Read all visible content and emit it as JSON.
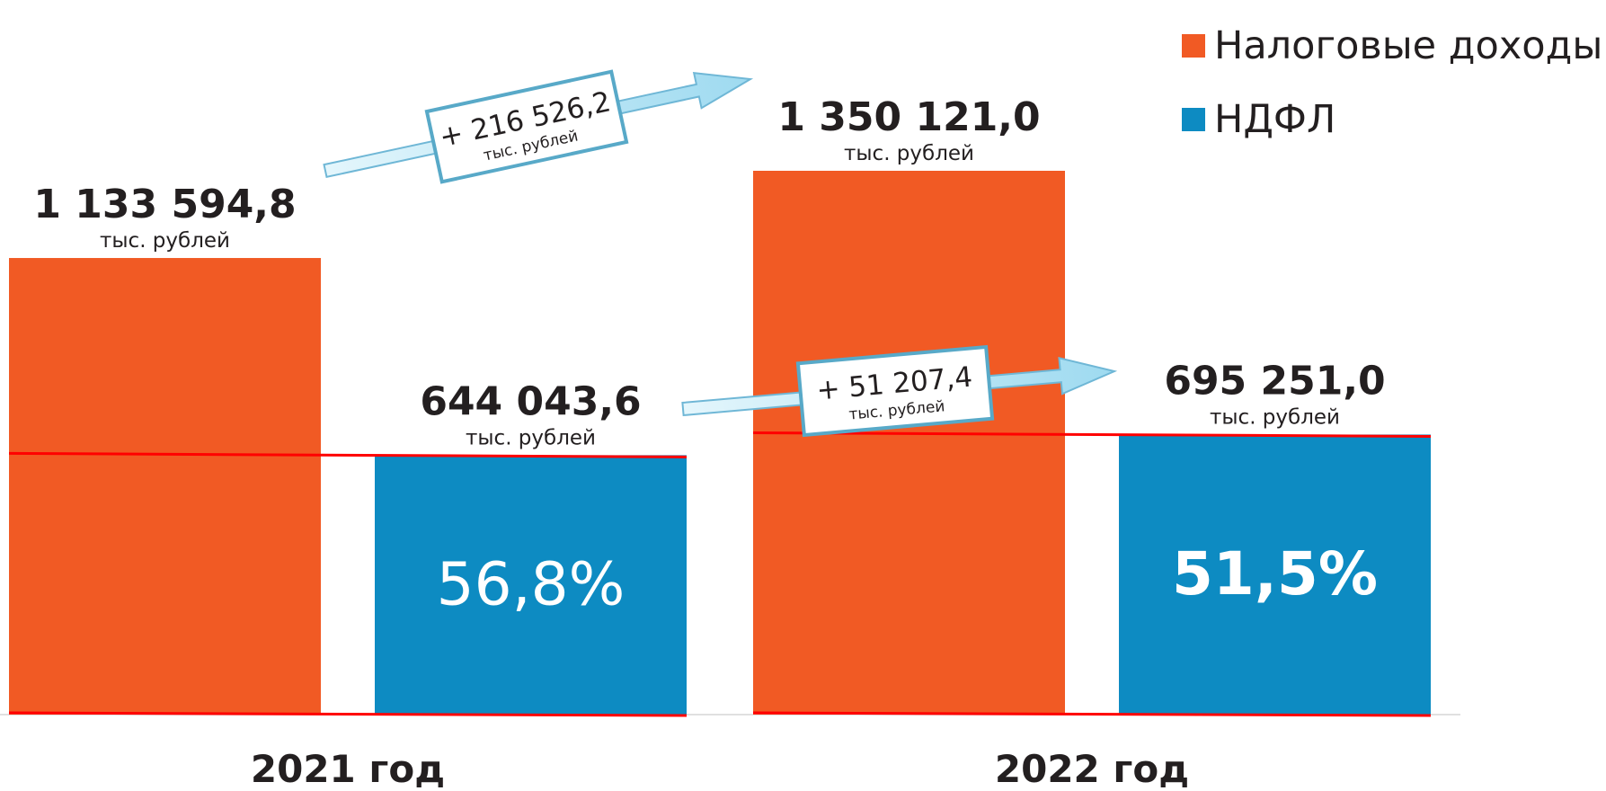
{
  "chart_data": {
    "type": "bar",
    "categories": [
      "2021 год",
      "2022 год"
    ],
    "series": [
      {
        "name": "Налоговые доходы",
        "color": "#f15a24",
        "values": [
          1133594.8,
          1350121.0
        ]
      },
      {
        "name": "НДФЛ",
        "color": "#0d8bc2",
        "values": [
          644043.6,
          695251.0
        ]
      }
    ],
    "value_labels": [
      [
        "1 133 594,8",
        "1 350 121,0"
      ],
      [
        "644 043,6",
        "695 251,0"
      ]
    ],
    "unit_label": "тыс. рублей",
    "share_labels": [
      "56,8%",
      "51,5%"
    ],
    "annotations": [
      {
        "series": "Налоговые доходы",
        "text": "+ 216 526,2",
        "unit": "тыс. рублей"
      },
      {
        "series": "НДФЛ",
        "text": "+ 51 207,4",
        "unit": "тыс. рублей"
      }
    ],
    "ylim": [
      0,
      1400000
    ],
    "legend_position": "top-right",
    "grid": false
  }
}
